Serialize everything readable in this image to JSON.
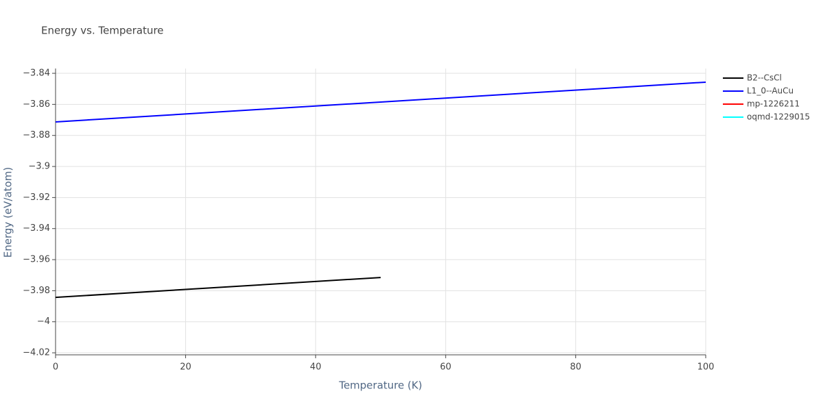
{
  "chart_data": {
    "type": "line",
    "title": "Energy vs. Temperature",
    "x_label": "Temperature (K)",
    "y_label": "Energy (eV/atom)",
    "xlim": [
      0,
      100
    ],
    "xticks": [
      0,
      20,
      40,
      60,
      80,
      100
    ],
    "ylim": [
      -4.0213,
      -3.8369
    ],
    "yticks": [
      {
        "value": -4.02,
        "label": "−4.02"
      },
      {
        "value": -4,
        "label": "−4"
      },
      {
        "value": -3.98,
        "label": "−3.98"
      },
      {
        "value": -3.96,
        "label": "−3.96"
      },
      {
        "value": -3.94,
        "label": "−3.94"
      },
      {
        "value": -3.92,
        "label": "−3.92"
      },
      {
        "value": -3.9,
        "label": "−3.9"
      },
      {
        "value": -3.88,
        "label": "−3.88"
      },
      {
        "value": -3.86,
        "label": "−3.86"
      },
      {
        "value": -3.84,
        "label": "−3.84"
      }
    ],
    "grid": true,
    "legend": "right",
    "series": [
      {
        "name": "B2--CsCl",
        "color": "#000000",
        "x": [
          0,
          25,
          50
        ],
        "values": [
          -3.9843,
          -3.9779,
          -3.9715
        ]
      },
      {
        "name": "L1_0--AuCu",
        "color": "#0000ff",
        "x": [
          0,
          50,
          100
        ],
        "values": [
          -3.8713,
          -3.8585,
          -3.8457
        ]
      },
      {
        "name": "mp-1226211",
        "color": "#ff0000",
        "x": [],
        "values": []
      },
      {
        "name": "oqmd-1229015",
        "color": "#00ffff",
        "x": [],
        "values": []
      }
    ]
  }
}
